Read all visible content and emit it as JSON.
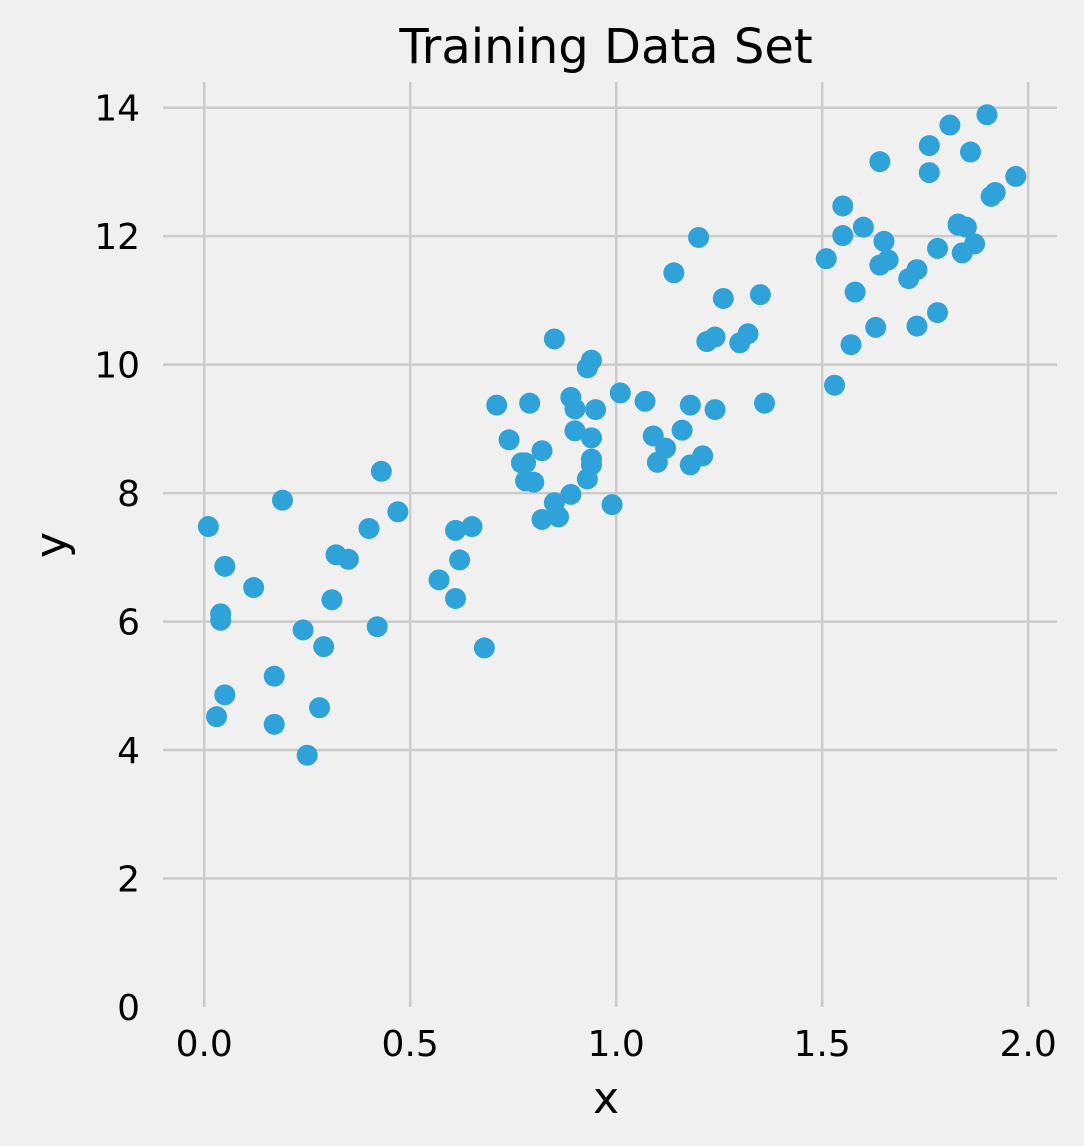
{
  "chart_data": {
    "type": "scatter",
    "title": "Training Data Set",
    "xlabel": "x",
    "ylabel": "y",
    "xlim": [
      -0.1,
      2.07
    ],
    "ylim": [
      0,
      14.4
    ],
    "grid": true,
    "xticks": [
      0.0,
      0.5,
      1.0,
      1.5,
      2.0
    ],
    "xtick_labels": [
      "0.0",
      "0.5",
      "1.0",
      "1.5",
      "2.0"
    ],
    "yticks": [
      0,
      2,
      4,
      6,
      8,
      10,
      12,
      14
    ],
    "ytick_labels": [
      "0",
      "2",
      "4",
      "6",
      "8",
      "10",
      "12",
      "14"
    ],
    "point_color": "#30a2da",
    "background_color": "#f0f0f0",
    "grid_color": "#cbcbcb",
    "points": [
      [
        0.01,
        7.48
      ],
      [
        0.04,
        6.12
      ],
      [
        0.04,
        6.02
      ],
      [
        0.05,
        6.86
      ],
      [
        0.05,
        4.86
      ],
      [
        0.03,
        4.52
      ],
      [
        0.12,
        6.53
      ],
      [
        0.19,
        7.89
      ],
      [
        0.17,
        5.15
      ],
      [
        0.17,
        4.4
      ],
      [
        0.25,
        3.92
      ],
      [
        0.24,
        5.87
      ],
      [
        0.28,
        4.66
      ],
      [
        0.29,
        5.61
      ],
      [
        0.31,
        6.34
      ],
      [
        0.32,
        7.04
      ],
      [
        0.35,
        6.97
      ],
      [
        0.4,
        7.45
      ],
      [
        0.42,
        5.92
      ],
      [
        0.43,
        8.34
      ],
      [
        0.47,
        7.71
      ],
      [
        0.57,
        6.65
      ],
      [
        0.61,
        7.42
      ],
      [
        0.61,
        6.36
      ],
      [
        0.62,
        6.96
      ],
      [
        0.65,
        7.48
      ],
      [
        0.68,
        5.59
      ],
      [
        0.71,
        9.37
      ],
      [
        0.74,
        8.83
      ],
      [
        0.77,
        8.47
      ],
      [
        0.78,
        8.19
      ],
      [
        0.79,
        9.4
      ],
      [
        0.8,
        8.17
      ],
      [
        0.82,
        8.66
      ],
      [
        0.82,
        7.59
      ],
      [
        0.85,
        7.85
      ],
      [
        0.85,
        10.4
      ],
      [
        0.86,
        7.63
      ],
      [
        0.89,
        7.98
      ],
      [
        0.89,
        9.49
      ],
      [
        0.9,
        9.31
      ],
      [
        0.9,
        8.97
      ],
      [
        0.93,
        9.95
      ],
      [
        0.93,
        8.22
      ],
      [
        0.94,
        10.07
      ],
      [
        0.94,
        8.86
      ],
      [
        0.94,
        8.53
      ],
      [
        0.94,
        8.44
      ],
      [
        0.95,
        9.3
      ],
      [
        0.99,
        7.82
      ],
      [
        1.01,
        9.56
      ],
      [
        1.07,
        9.43
      ],
      [
        1.09,
        8.89
      ],
      [
        1.1,
        8.48
      ],
      [
        1.12,
        8.7
      ],
      [
        1.14,
        11.43
      ],
      [
        1.16,
        8.98
      ],
      [
        1.18,
        9.37
      ],
      [
        1.18,
        8.44
      ],
      [
        1.2,
        11.98
      ],
      [
        1.21,
        8.58
      ],
      [
        1.22,
        10.36
      ],
      [
        1.24,
        10.43
      ],
      [
        1.24,
        9.3
      ],
      [
        1.26,
        11.03
      ],
      [
        1.3,
        10.34
      ],
      [
        1.32,
        10.48
      ],
      [
        1.35,
        11.09
      ],
      [
        1.36,
        9.4
      ],
      [
        1.51,
        11.65
      ],
      [
        1.53,
        9.68
      ],
      [
        1.55,
        12.47
      ],
      [
        1.55,
        12.01
      ],
      [
        1.57,
        10.31
      ],
      [
        1.58,
        11.13
      ],
      [
        1.6,
        12.14
      ],
      [
        1.63,
        10.58
      ],
      [
        1.64,
        13.16
      ],
      [
        1.64,
        11.55
      ],
      [
        1.65,
        11.92
      ],
      [
        1.66,
        11.63
      ],
      [
        1.71,
        11.34
      ],
      [
        1.73,
        11.48
      ],
      [
        1.73,
        10.6
      ],
      [
        1.76,
        13.41
      ],
      [
        1.76,
        12.99
      ],
      [
        1.78,
        11.81
      ],
      [
        1.78,
        10.81
      ],
      [
        1.81,
        13.73
      ],
      [
        1.83,
        12.19
      ],
      [
        1.84,
        11.74
      ],
      [
        1.85,
        12.14
      ],
      [
        1.86,
        13.31
      ],
      [
        1.87,
        11.88
      ],
      [
        1.9,
        13.89
      ],
      [
        1.91,
        12.62
      ],
      [
        1.92,
        12.68
      ],
      [
        1.97,
        12.93
      ],
      [
        1.83,
        12.17
      ],
      [
        0.78,
        8.47
      ]
    ]
  }
}
